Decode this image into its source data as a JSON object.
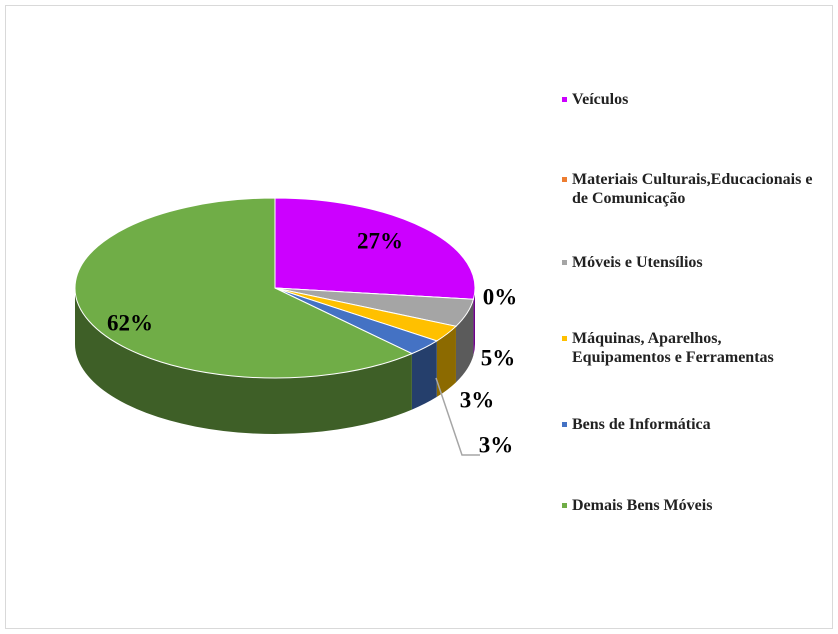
{
  "chart_data": {
    "type": "pie",
    "categories": [
      "Veículos",
      "Materiais Culturais,Educacionais e de Comunicação",
      "Móveis e Utensílios",
      "Máquinas, Aparelhos, Equipamentos e Ferramentas",
      "Bens de Informática",
      "Demais Bens Móveis"
    ],
    "values": [
      27,
      0,
      5,
      3,
      3,
      62
    ],
    "value_labels": [
      "27%",
      "0%",
      "5%",
      "3%",
      "3%",
      "62%"
    ],
    "colors": [
      "#cc00ff",
      "#ed7d31",
      "#a5a5a5",
      "#ffc000",
      "#4472c4",
      "#70ad47"
    ],
    "legend": "right"
  }
}
